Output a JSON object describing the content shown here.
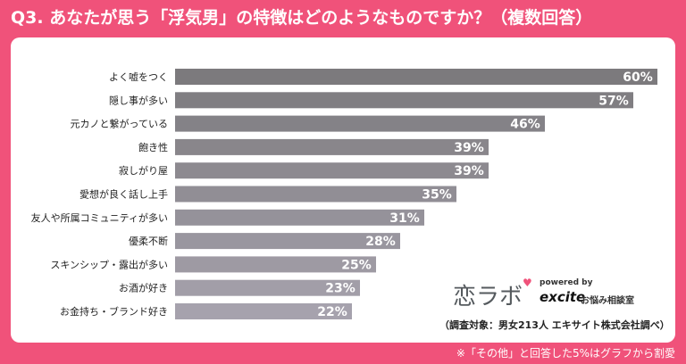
{
  "header": {
    "title": "Q3. あなたが思う「浮気男」の特徴はどのようなものですか？（複数回答）"
  },
  "logo": {
    "main": "恋ラボ",
    "powered": "powered by",
    "excite": "excite",
    "sub": "お悩み相談室"
  },
  "source": "（調査対象：男女213人 エキサイト株式会社調べ）",
  "footnote": "※「その他」と回答した5%はグラフから割愛",
  "chart_data": {
    "type": "bar",
    "orientation": "horizontal",
    "title": "Q3. あなたが思う「浮気男」の特徴はどのようなものですか？（複数回答）",
    "unit": "%",
    "xlim": [
      0,
      60
    ],
    "categories": [
      "よく嘘をつく",
      "隠し事が多い",
      "元カノと繋がっている",
      "飽き性",
      "寂しがり屋",
      "愛想が良く話し上手",
      "友人や所属コミュニティが多い",
      "優柔不断",
      "スキンシップ・露出が多い",
      "お酒が好き",
      "お金持ち・ブランド好き"
    ],
    "values": [
      60,
      57,
      46,
      39,
      39,
      35,
      31,
      28,
      25,
      23,
      22
    ],
    "value_labels": [
      "60%",
      "57%",
      "46%",
      "39%",
      "39%",
      "35%",
      "31%",
      "28%",
      "25%",
      "23%",
      "22%"
    ],
    "colors": {
      "bar_top": "#7c7a7d",
      "bar_bottom": "#a6a2ad",
      "header_bg": "#f0527a"
    }
  }
}
